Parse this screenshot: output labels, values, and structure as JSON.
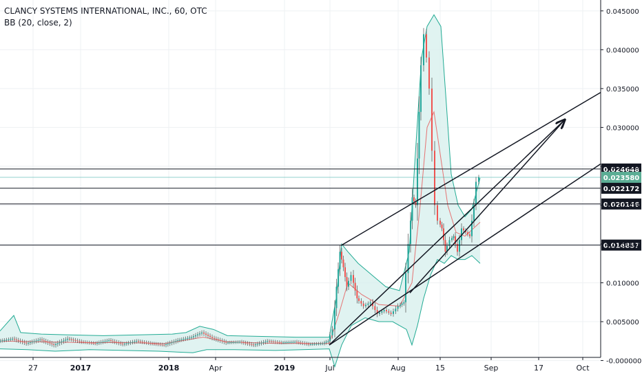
{
  "header": {
    "symbol_line": "CLANCY SYSTEMS INTERNATIONAL, INC., 60, OTC",
    "indicator_line": "BB (20, close, 2)"
  },
  "chart_data": {
    "type": "line",
    "title": "CLANCY SYSTEMS INTERNATIONAL, INC., 60, OTC",
    "indicator": "BB (20, close, 2)",
    "ylim": [
      -0.00225,
      0.0464
    ],
    "grid": true,
    "x_ticks": [
      "27",
      "2017",
      "2018",
      "Apr",
      "2019",
      "Jul",
      "Aug",
      "15",
      "Sep",
      "17",
      "Oct"
    ],
    "y_ticks": [
      "0.045000",
      "0.040000",
      "0.035000",
      "0.030000",
      "0.025000",
      "0.020000",
      "0.015000",
      "0.010000",
      "0.005000",
      "-0.000000"
    ],
    "horizontal_levels": [
      {
        "label": "0.024648",
        "value": 0.024648
      },
      {
        "label": "0.022172",
        "value": 0.022172
      },
      {
        "label": "0.020146",
        "value": 0.020146
      },
      {
        "label": "0.014857",
        "value": 0.014857
      }
    ],
    "current_price": {
      "label": "0.023580",
      "value": 0.02358
    },
    "price_series": [
      {
        "x": 0,
        "y": 0.0025
      },
      {
        "x": 20,
        "y": 0.0028
      },
      {
        "x": 40,
        "y": 0.0022
      },
      {
        "x": 60,
        "y": 0.0027
      },
      {
        "x": 80,
        "y": 0.002
      },
      {
        "x": 100,
        "y": 0.0028
      },
      {
        "x": 120,
        "y": 0.0024
      },
      {
        "x": 140,
        "y": 0.0022
      },
      {
        "x": 160,
        "y": 0.0026
      },
      {
        "x": 180,
        "y": 0.0021
      },
      {
        "x": 200,
        "y": 0.0025
      },
      {
        "x": 220,
        "y": 0.0022
      },
      {
        "x": 240,
        "y": 0.002
      },
      {
        "x": 260,
        "y": 0.0026
      },
      {
        "x": 280,
        "y": 0.003
      },
      {
        "x": 295,
        "y": 0.0036
      },
      {
        "x": 310,
        "y": 0.0029
      },
      {
        "x": 330,
        "y": 0.0023
      },
      {
        "x": 350,
        "y": 0.0024
      },
      {
        "x": 370,
        "y": 0.002
      },
      {
        "x": 390,
        "y": 0.0025
      },
      {
        "x": 410,
        "y": 0.0023
      },
      {
        "x": 430,
        "y": 0.0024
      },
      {
        "x": 450,
        "y": 0.0021
      },
      {
        "x": 470,
        "y": 0.0022
      },
      {
        "x": 478,
        "y": 0.0025
      },
      {
        "x": 485,
        "y": 0.004
      },
      {
        "x": 490,
        "y": 0.0095
      },
      {
        "x": 495,
        "y": 0.014
      },
      {
        "x": 500,
        "y": 0.012
      },
      {
        "x": 505,
        "y": 0.0095
      },
      {
        "x": 512,
        "y": 0.011
      },
      {
        "x": 520,
        "y": 0.008
      },
      {
        "x": 530,
        "y": 0.007
      },
      {
        "x": 540,
        "y": 0.0075
      },
      {
        "x": 550,
        "y": 0.006
      },
      {
        "x": 560,
        "y": 0.0065
      },
      {
        "x": 570,
        "y": 0.006
      },
      {
        "x": 580,
        "y": 0.007
      },
      {
        "x": 588,
        "y": 0.0075
      },
      {
        "x": 595,
        "y": 0.015
      },
      {
        "x": 600,
        "y": 0.021
      },
      {
        "x": 605,
        "y": 0.02
      },
      {
        "x": 610,
        "y": 0.032
      },
      {
        "x": 614,
        "y": 0.038
      },
      {
        "x": 618,
        "y": 0.042
      },
      {
        "x": 622,
        "y": 0.039
      },
      {
        "x": 626,
        "y": 0.035
      },
      {
        "x": 630,
        "y": 0.027
      },
      {
        "x": 634,
        "y": 0.02
      },
      {
        "x": 638,
        "y": 0.018
      },
      {
        "x": 643,
        "y": 0.017
      },
      {
        "x": 648,
        "y": 0.014
      },
      {
        "x": 655,
        "y": 0.0155
      },
      {
        "x": 660,
        "y": 0.016
      },
      {
        "x": 666,
        "y": 0.014
      },
      {
        "x": 672,
        "y": 0.017
      },
      {
        "x": 678,
        "y": 0.0165
      },
      {
        "x": 684,
        "y": 0.016
      },
      {
        "x": 690,
        "y": 0.02
      },
      {
        "x": 694,
        "y": 0.023
      },
      {
        "x": 697,
        "y": 0.0236
      }
    ],
    "bb_upper": [
      {
        "x": 0,
        "y": 0.0038
      },
      {
        "x": 20,
        "y": 0.0058
      },
      {
        "x": 30,
        "y": 0.0036
      },
      {
        "x": 60,
        "y": 0.0034
      },
      {
        "x": 100,
        "y": 0.0033
      },
      {
        "x": 150,
        "y": 0.0032
      },
      {
        "x": 200,
        "y": 0.0033
      },
      {
        "x": 250,
        "y": 0.0034
      },
      {
        "x": 270,
        "y": 0.0036
      },
      {
        "x": 290,
        "y": 0.0044
      },
      {
        "x": 310,
        "y": 0.004
      },
      {
        "x": 330,
        "y": 0.0032
      },
      {
        "x": 380,
        "y": 0.0031
      },
      {
        "x": 430,
        "y": 0.003
      },
      {
        "x": 478,
        "y": 0.003
      },
      {
        "x": 488,
        "y": 0.008
      },
      {
        "x": 496,
        "y": 0.015
      },
      {
        "x": 505,
        "y": 0.014
      },
      {
        "x": 520,
        "y": 0.0125
      },
      {
        "x": 540,
        "y": 0.011
      },
      {
        "x": 560,
        "y": 0.0095
      },
      {
        "x": 580,
        "y": 0.009
      },
      {
        "x": 594,
        "y": 0.014
      },
      {
        "x": 604,
        "y": 0.028
      },
      {
        "x": 612,
        "y": 0.039
      },
      {
        "x": 620,
        "y": 0.043
      },
      {
        "x": 630,
        "y": 0.0445
      },
      {
        "x": 640,
        "y": 0.043
      },
      {
        "x": 648,
        "y": 0.033
      },
      {
        "x": 655,
        "y": 0.024
      },
      {
        "x": 665,
        "y": 0.02
      },
      {
        "x": 675,
        "y": 0.0185
      },
      {
        "x": 685,
        "y": 0.0195
      },
      {
        "x": 697,
        "y": 0.0235
      }
    ],
    "bb_lower": [
      {
        "x": 0,
        "y": 0.0015
      },
      {
        "x": 40,
        "y": 0.0014
      },
      {
        "x": 80,
        "y": 0.0012
      },
      {
        "x": 130,
        "y": 0.0014
      },
      {
        "x": 180,
        "y": 0.0013
      },
      {
        "x": 230,
        "y": 0.0012
      },
      {
        "x": 280,
        "y": 0.001
      },
      {
        "x": 300,
        "y": 0.0014
      },
      {
        "x": 340,
        "y": 0.0014
      },
      {
        "x": 400,
        "y": 0.0013
      },
      {
        "x": 478,
        "y": 0.0015
      },
      {
        "x": 486,
        "y": -0.0008
      },
      {
        "x": 496,
        "y": 0.002
      },
      {
        "x": 510,
        "y": 0.0045
      },
      {
        "x": 530,
        "y": 0.0055
      },
      {
        "x": 550,
        "y": 0.005
      },
      {
        "x": 570,
        "y": 0.005
      },
      {
        "x": 590,
        "y": 0.004
      },
      {
        "x": 598,
        "y": 0.002
      },
      {
        "x": 606,
        "y": 0.0045
      },
      {
        "x": 615,
        "y": 0.008
      },
      {
        "x": 625,
        "y": 0.011
      },
      {
        "x": 635,
        "y": 0.013
      },
      {
        "x": 645,
        "y": 0.0125
      },
      {
        "x": 655,
        "y": 0.0135
      },
      {
        "x": 665,
        "y": 0.013
      },
      {
        "x": 675,
        "y": 0.013
      },
      {
        "x": 685,
        "y": 0.0135
      },
      {
        "x": 697,
        "y": 0.0125
      }
    ],
    "bb_basis": [
      {
        "x": 0,
        "y": 0.0025
      },
      {
        "x": 60,
        "y": 0.0024
      },
      {
        "x": 120,
        "y": 0.0023
      },
      {
        "x": 180,
        "y": 0.0023
      },
      {
        "x": 240,
        "y": 0.0022
      },
      {
        "x": 295,
        "y": 0.003
      },
      {
        "x": 330,
        "y": 0.0024
      },
      {
        "x": 400,
        "y": 0.0022
      },
      {
        "x": 478,
        "y": 0.0022
      },
      {
        "x": 492,
        "y": 0.006
      },
      {
        "x": 505,
        "y": 0.01
      },
      {
        "x": 525,
        "y": 0.0085
      },
      {
        "x": 550,
        "y": 0.0072
      },
      {
        "x": 580,
        "y": 0.007
      },
      {
        "x": 598,
        "y": 0.01
      },
      {
        "x": 610,
        "y": 0.02
      },
      {
        "x": 620,
        "y": 0.03
      },
      {
        "x": 630,
        "y": 0.032
      },
      {
        "x": 640,
        "y": 0.026
      },
      {
        "x": 650,
        "y": 0.02
      },
      {
        "x": 662,
        "y": 0.0165
      },
      {
        "x": 675,
        "y": 0.016
      },
      {
        "x": 697,
        "y": 0.0178
      }
    ],
    "trend_lines": [
      {
        "name": "lower-channel",
        "x1": 478,
        "y1": 0.002,
        "x2": 872,
        "y2": 0.0253,
        "arrow": false
      },
      {
        "name": "upper-channel",
        "x1": 495,
        "y1": 0.0148,
        "x2": 872,
        "y2": 0.0345,
        "arrow": false
      },
      {
        "name": "arrow-to-mid",
        "x1": 595,
        "y1": 0.0087,
        "x2": 820,
        "y2": 0.031,
        "arrow": true
      },
      {
        "name": "arrow-long",
        "x1": 478,
        "y1": 0.002,
        "x2": 820,
        "y2": 0.031,
        "arrow": true
      }
    ],
    "colors": {
      "candle_up": "#26a69a",
      "candle_down": "#ef5350",
      "bb_band": "#22ab94",
      "bb_fill": "#d8f0ed",
      "bb_basis": "#e57373",
      "level_line": "#131722",
      "current_price_bg": "#5bad94",
      "current_price_line": "#26a69a",
      "grid": "#eef0f3",
      "axis_text": "#131722"
    }
  }
}
